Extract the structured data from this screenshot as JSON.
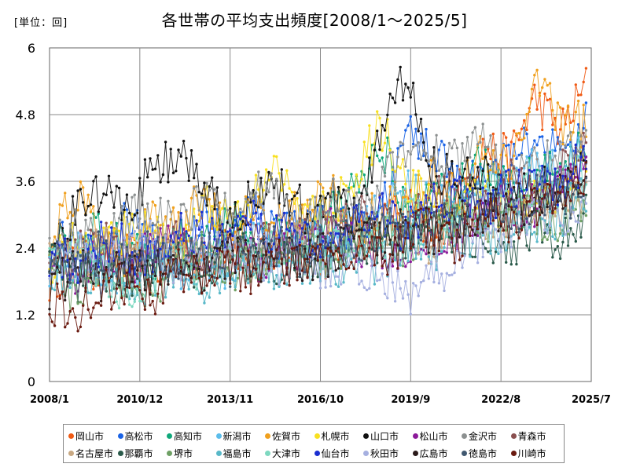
{
  "unit_label": "[単位：回]",
  "chart_data": {
    "type": "line",
    "title": "各世帯の平均支出頻度[2008/1～2025/5]",
    "xlabel": "",
    "ylabel": "",
    "ylim": [
      0,
      6
    ],
    "yticks": [
      "0",
      "1.2",
      "2.4",
      "3.6",
      "4.8",
      "6"
    ],
    "xlim": [
      "2008-01",
      "2025-07"
    ],
    "xticks": [
      "2008/1",
      "2010/12",
      "2013/11",
      "2016/10",
      "2019/9",
      "2022/8",
      "2025/7"
    ],
    "grid": true,
    "legend_position": "bottom",
    "series": [
      {
        "name": "岡山市",
        "color": "#f05a14",
        "values": [
          1.8,
          2.2,
          2.0,
          2.3,
          1.9,
          2.4,
          2.1,
          2.5,
          2.2,
          2.3,
          2.4,
          2.2,
          2.6,
          2.8,
          3.2,
          2.5,
          3.4,
          4.2,
          4.0,
          5.1,
          4.5,
          5.3
        ]
      },
      {
        "name": "高松市",
        "color": "#1a63e6",
        "values": [
          2.3,
          2.6,
          2.1,
          2.9,
          2.4,
          2.2,
          3.0,
          2.5,
          3.1,
          2.6,
          2.7,
          2.8,
          2.7,
          3.0,
          4.4,
          4.2,
          3.6,
          3.5,
          4.0,
          4.3,
          4.1,
          4.6
        ]
      },
      {
        "name": "高知市",
        "color": "#10a87a",
        "values": [
          2.5,
          2.2,
          2.8,
          2.4,
          2.0,
          2.6,
          2.3,
          2.9,
          2.4,
          2.8,
          2.5,
          3.0,
          3.4,
          4.3,
          2.9,
          3.3,
          3.5,
          3.9,
          3.4,
          3.7,
          3.8,
          4.4
        ]
      },
      {
        "name": "新潟市",
        "color": "#5cbdeb",
        "values": [
          1.9,
          2.3,
          2.1,
          1.8,
          2.4,
          2.0,
          2.2,
          1.9,
          2.5,
          2.3,
          2.6,
          2.4,
          2.8,
          3.0,
          3.4,
          3.1,
          3.2,
          3.8,
          3.3,
          3.9,
          3.7,
          4.2
        ]
      },
      {
        "name": "佐賀市",
        "color": "#f0a01e",
        "values": [
          2.4,
          3.4,
          2.6,
          2.2,
          2.9,
          2.7,
          3.3,
          2.6,
          3.2,
          2.9,
          3.1,
          3.4,
          2.8,
          3.1,
          3.3,
          3.7,
          3.2,
          4.2,
          3.9,
          5.3,
          4.7,
          4.6
        ]
      },
      {
        "name": "札幌市",
        "color": "#f8e020",
        "values": [
          2.1,
          2.5,
          2.3,
          2.8,
          2.6,
          2.4,
          3.2,
          2.9,
          3.4,
          3.8,
          3.1,
          3.0,
          3.8,
          4.6,
          3.5,
          3.2,
          3.0,
          3.4,
          3.0,
          3.6,
          3.4,
          3.9
        ]
      },
      {
        "name": "山口市",
        "color": "#111111",
        "values": [
          2.0,
          3.2,
          3.4,
          3.0,
          3.8,
          4.1,
          3.5,
          2.8,
          3.3,
          3.6,
          3.0,
          3.3,
          3.0,
          4.5,
          5.5,
          3.8,
          3.6,
          3.7,
          3.3,
          3.5,
          3.4,
          4.0
        ]
      },
      {
        "name": "松山市",
        "color": "#8c1a9a",
        "values": [
          2.2,
          2.0,
          2.4,
          2.1,
          2.3,
          2.5,
          2.2,
          2.4,
          2.2,
          2.3,
          2.5,
          2.7,
          2.5,
          2.3,
          2.2,
          2.6,
          2.7,
          3.0,
          3.2,
          3.2,
          3.5,
          4.0
        ]
      },
      {
        "name": "金沢市",
        "color": "#8c9090",
        "values": [
          2.5,
          2.7,
          2.4,
          2.9,
          3.2,
          2.8,
          3.3,
          3.0,
          3.6,
          3.2,
          2.8,
          3.3,
          3.0,
          3.6,
          4.1,
          4.3,
          3.9,
          4.3,
          3.4,
          4.0,
          3.9,
          4.4
        ]
      },
      {
        "name": "青森市",
        "color": "#8a5050",
        "values": [
          2.0,
          2.2,
          2.6,
          2.3,
          2.0,
          2.5,
          2.3,
          2.5,
          2.6,
          2.4,
          2.8,
          2.6,
          2.9,
          3.1,
          2.9,
          3.3,
          3.4,
          3.2,
          3.6,
          3.4,
          3.8,
          4.1
        ]
      },
      {
        "name": "名古屋市",
        "color": "#c8a882",
        "values": [
          2.3,
          2.1,
          2.4,
          2.2,
          2.5,
          2.3,
          2.2,
          2.4,
          2.3,
          2.6,
          2.4,
          2.5,
          2.6,
          2.7,
          2.8,
          2.5,
          2.9,
          3.0,
          2.8,
          3.2,
          3.0,
          3.3
        ]
      },
      {
        "name": "那覇市",
        "color": "#2a5a4a",
        "values": [
          2.1,
          1.8,
          2.0,
          1.9,
          2.2,
          2.1,
          2.0,
          2.3,
          2.2,
          2.1,
          2.3,
          2.2,
          2.4,
          2.5,
          2.6,
          2.8,
          2.7,
          2.6,
          2.4,
          2.7,
          2.5,
          3.0
        ]
      },
      {
        "name": "堺市",
        "color": "#6ea064",
        "values": [
          2.0,
          1.5,
          2.2,
          1.8,
          1.7,
          2.0,
          2.3,
          1.9,
          2.2,
          2.0,
          2.4,
          2.2,
          2.5,
          2.7,
          2.4,
          2.9,
          3.0,
          2.8,
          3.1,
          3.0,
          2.9,
          3.4
        ]
      },
      {
        "name": "福島市",
        "color": "#58b8c8",
        "values": [
          1.9,
          1.7,
          2.0,
          1.6,
          1.8,
          1.9,
          1.6,
          1.8,
          2.0,
          1.9,
          2.1,
          2.0,
          2.2,
          2.1,
          2.5,
          2.4,
          2.6,
          2.5,
          2.8,
          2.7,
          3.0,
          3.4
        ]
      },
      {
        "name": "大津市",
        "color": "#7ed8c0",
        "values": [
          2.0,
          2.3,
          2.1,
          1.6,
          2.0,
          2.2,
          1.9,
          2.3,
          2.1,
          2.4,
          2.2,
          2.3,
          2.7,
          2.6,
          3.0,
          2.8,
          3.1,
          3.3,
          3.0,
          3.5,
          3.4,
          3.8
        ]
      },
      {
        "name": "仙台市",
        "color": "#1a2ed0",
        "values": [
          2.3,
          2.1,
          2.5,
          2.4,
          2.2,
          2.6,
          2.8,
          2.5,
          2.9,
          2.6,
          2.7,
          2.5,
          2.8,
          3.0,
          2.7,
          3.2,
          3.3,
          3.1,
          3.5,
          3.4,
          3.6,
          4.0
        ]
      },
      {
        "name": "秋田市",
        "color": "#a6b0e0",
        "values": [
          2.2,
          2.4,
          2.0,
          2.3,
          2.5,
          2.1,
          2.4,
          2.2,
          2.3,
          2.1,
          2.2,
          2.0,
          2.1,
          1.9,
          1.6,
          1.8,
          2.3,
          2.6,
          2.8,
          3.1,
          2.9,
          3.3
        ]
      },
      {
        "name": "広島市",
        "color": "#2a1a1a",
        "values": [
          1.6,
          2.0,
          1.8,
          2.1,
          1.9,
          2.2,
          2.0,
          2.3,
          2.1,
          2.4,
          2.2,
          2.3,
          2.6,
          2.5,
          2.8,
          2.7,
          3.0,
          2.9,
          3.2,
          3.1,
          3.4,
          3.7
        ]
      },
      {
        "name": "徳島市",
        "color": "#405870",
        "values": [
          2.2,
          2.0,
          2.3,
          2.1,
          2.5,
          2.2,
          2.4,
          2.1,
          2.3,
          2.5,
          2.2,
          2.6,
          2.4,
          2.8,
          2.6,
          3.0,
          2.9,
          3.2,
          3.0,
          3.3,
          3.2,
          3.6
        ]
      },
      {
        "name": "川崎市",
        "color": "#6a1a10",
        "values": [
          1.4,
          1.2,
          1.6,
          1.8,
          1.5,
          2.0,
          1.8,
          2.1,
          1.9,
          2.2,
          2.0,
          2.3,
          2.4,
          2.2,
          2.6,
          2.8,
          2.5,
          3.0,
          2.9,
          3.1,
          3.3,
          3.8
        ]
      }
    ]
  }
}
